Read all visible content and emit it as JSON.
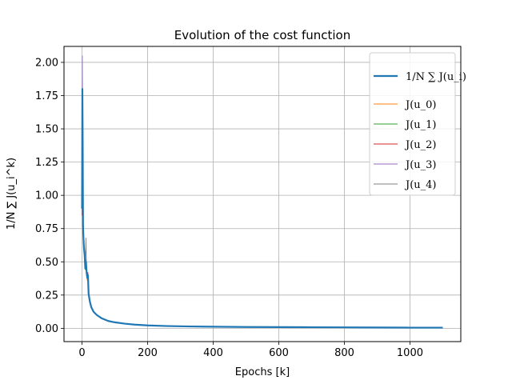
{
  "chart_data": {
    "type": "line",
    "title": "Evolution of the cost function",
    "xlabel": "Epochs [k]",
    "ylabel": "1/N ∑ J(u_i^k)",
    "xlim": [
      -55,
      1155
    ],
    "ylim": [
      -0.1,
      2.12
    ],
    "xticks": [
      0,
      200,
      400,
      600,
      800,
      1000
    ],
    "yticks": [
      0.0,
      0.25,
      0.5,
      0.75,
      1.0,
      1.25,
      1.5,
      1.75,
      2.0
    ],
    "xtick_labels": [
      "0",
      "200",
      "400",
      "600",
      "800",
      "1000"
    ],
    "ytick_labels": [
      "0.00",
      "0.25",
      "0.50",
      "0.75",
      "1.00",
      "1.25",
      "1.50",
      "1.75",
      "2.00"
    ],
    "grid": true,
    "legend_position": "top-right",
    "series": [
      {
        "name": "1/N ∑ J(u_i)",
        "color": "#1f77b4",
        "width": 2.2,
        "x": [
          0,
          1,
          2,
          3,
          4,
          6,
          8,
          10,
          12,
          14,
          16,
          18,
          20,
          24,
          28,
          35,
          45,
          60,
          80,
          100,
          130,
          160,
          200,
          260,
          330,
          400,
          500,
          600,
          700,
          800,
          900,
          1000,
          1100
        ],
        "values": [
          0.9,
          1.8,
          1.4,
          0.78,
          0.7,
          0.6,
          0.55,
          0.45,
          0.5,
          0.42,
          0.38,
          0.4,
          0.26,
          0.2,
          0.16,
          0.125,
          0.1,
          0.075,
          0.055,
          0.045,
          0.035,
          0.028,
          0.022,
          0.017,
          0.014,
          0.012,
          0.01,
          0.009,
          0.008,
          0.007,
          0.006,
          0.005,
          0.005
        ]
      },
      {
        "name": "J(u_0)",
        "color": "#ff7f0e",
        "width": 0.8,
        "x": [
          0,
          1,
          2,
          3,
          4,
          6,
          8,
          10,
          12,
          14,
          16,
          18,
          20,
          24,
          28,
          35,
          45,
          60,
          80,
          100,
          130,
          160,
          200,
          260,
          330,
          400,
          500,
          600,
          700,
          800,
          900,
          1000,
          1100
        ],
        "values": [
          0.88,
          1.55,
          1.3,
          0.8,
          0.72,
          0.58,
          0.52,
          0.47,
          0.48,
          0.4,
          0.36,
          0.41,
          0.25,
          0.19,
          0.155,
          0.12,
          0.098,
          0.074,
          0.054,
          0.044,
          0.034,
          0.027,
          0.021,
          0.017,
          0.014,
          0.012,
          0.01,
          0.009,
          0.008,
          0.007,
          0.006,
          0.005,
          0.005
        ]
      },
      {
        "name": "J(u_1)",
        "color": "#2ca02c",
        "width": 0.8,
        "x": [
          0,
          1,
          2,
          3,
          4,
          6,
          8,
          10,
          12,
          14,
          16,
          18,
          20,
          24,
          28,
          35,
          45,
          60,
          80,
          100,
          130,
          160,
          200,
          260,
          330,
          400,
          500,
          600,
          700,
          800,
          900,
          1000,
          1100
        ],
        "values": [
          0.92,
          1.65,
          1.35,
          0.76,
          0.69,
          0.62,
          0.57,
          0.44,
          0.52,
          0.43,
          0.39,
          0.38,
          0.27,
          0.21,
          0.165,
          0.128,
          0.102,
          0.076,
          0.056,
          0.046,
          0.036,
          0.029,
          0.023,
          0.018,
          0.015,
          0.012,
          0.01,
          0.009,
          0.008,
          0.007,
          0.006,
          0.005,
          0.005
        ]
      },
      {
        "name": "J(u_2)",
        "color": "#d62728",
        "width": 0.8,
        "x": [
          0,
          1,
          2,
          3,
          4,
          6,
          8,
          10,
          12,
          14,
          16,
          18,
          20,
          24,
          28,
          35,
          45,
          60,
          80,
          100,
          130,
          160,
          200,
          260,
          330,
          400,
          500,
          600,
          700,
          800,
          900,
          1000,
          1100
        ],
        "values": [
          0.85,
          1.7,
          1.2,
          0.79,
          0.71,
          0.59,
          0.54,
          0.46,
          0.49,
          0.41,
          0.37,
          0.42,
          0.24,
          0.2,
          0.158,
          0.122,
          0.099,
          0.075,
          0.055,
          0.045,
          0.035,
          0.028,
          0.022,
          0.017,
          0.014,
          0.012,
          0.01,
          0.009,
          0.008,
          0.007,
          0.006,
          0.005,
          0.005
        ]
      },
      {
        "name": "J(u_3)",
        "color": "#9467bd",
        "width": 0.8,
        "x": [
          0,
          1,
          2,
          3,
          4,
          6,
          8,
          10,
          12,
          14,
          16,
          18,
          20,
          24,
          28,
          35,
          45,
          60,
          80,
          100,
          130,
          160,
          200,
          260,
          330,
          400,
          500,
          600,
          700,
          800,
          900,
          1000,
          1100
        ],
        "values": [
          0.95,
          2.05,
          1.45,
          0.77,
          0.7,
          0.61,
          0.56,
          0.45,
          0.51,
          0.42,
          0.38,
          0.39,
          0.26,
          0.2,
          0.162,
          0.126,
          0.101,
          0.076,
          0.056,
          0.045,
          0.035,
          0.028,
          0.022,
          0.017,
          0.014,
          0.012,
          0.01,
          0.009,
          0.008,
          0.007,
          0.006,
          0.005,
          0.005
        ]
      },
      {
        "name": "J(u_4)",
        "color": "#7f7f7f",
        "width": 0.8,
        "x": [
          0,
          1,
          2,
          3,
          4,
          6,
          8,
          10,
          12,
          14,
          16,
          18,
          20,
          24,
          28,
          35,
          45,
          60,
          80,
          100,
          130,
          160,
          200,
          260,
          330,
          400,
          500,
          600,
          700,
          800,
          900,
          1000,
          1100
        ],
        "values": [
          0.87,
          1.6,
          1.25,
          0.78,
          0.7,
          0.6,
          0.55,
          0.47,
          0.68,
          0.4,
          0.37,
          0.4,
          0.25,
          0.19,
          0.157,
          0.124,
          0.1,
          0.075,
          0.055,
          0.045,
          0.035,
          0.028,
          0.022,
          0.017,
          0.014,
          0.012,
          0.01,
          0.009,
          0.008,
          0.007,
          0.006,
          0.005,
          0.005
        ]
      }
    ]
  }
}
